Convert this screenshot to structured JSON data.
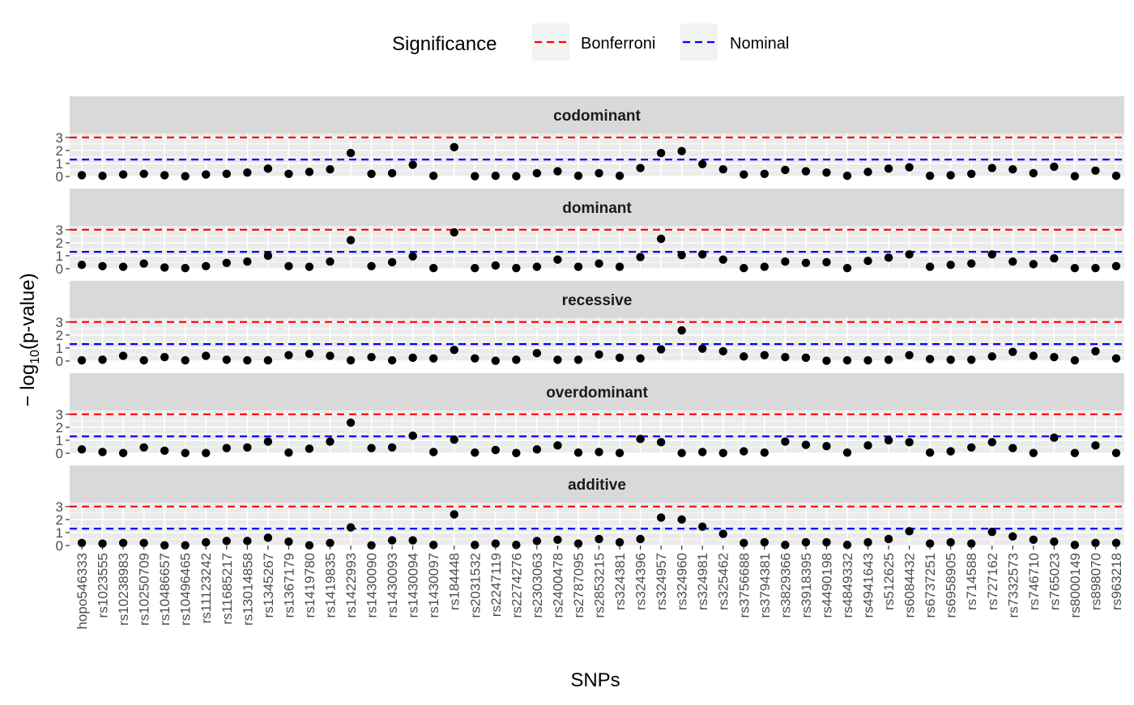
{
  "chart_data": {
    "type": "scatter",
    "xlabel": "SNPs",
    "ylabel": {
      "prefix": "− log",
      "subscript": "10",
      "suffix": "(p-value)"
    },
    "ylim": [
      0,
      3.3
    ],
    "yticks": [
      "0",
      "1",
      "2",
      "3"
    ],
    "grid": true,
    "legend": {
      "title": "Significance",
      "position": "top",
      "entries": [
        {
          "label": "Bonferroni",
          "color": "#ff0000",
          "linetype": "dashed"
        },
        {
          "label": "Nominal",
          "color": "#0000ff",
          "linetype": "dashed"
        }
      ]
    },
    "thresholds": {
      "Bonferroni": 3.0,
      "Nominal": 1.3
    },
    "colors": {
      "panel": "#ebebeb",
      "strip": "#d9d9d9",
      "grid": "#ffffff",
      "point": "#000000"
    },
    "categories": [
      "hopo546333",
      "rs1023555",
      "rs10238983",
      "rs10250709",
      "rs10486657",
      "rs10496465",
      "rs11123242",
      "rs11685217",
      "rs13014858",
      "rs1345267",
      "rs1367179",
      "rs1419780",
      "rs1419835",
      "rs1422993",
      "rs1430090",
      "rs1430093",
      "rs1430094",
      "rs1430097",
      "rs184448",
      "rs2031532",
      "rs2247119",
      "rs2274276",
      "rs2303063",
      "rs2400478",
      "rs2787095",
      "rs2853215",
      "rs324381",
      "rs324396",
      "rs324957",
      "rs324960",
      "rs324981",
      "rs325462",
      "rs3756688",
      "rs3794381",
      "rs3829366",
      "rs3918395",
      "rs4490198",
      "rs4849332",
      "rs4941643",
      "rs512625",
      "rs6084432",
      "rs6737251",
      "rs6958905",
      "rs714588",
      "rs727162",
      "rs7332573",
      "rs746710",
      "rs765023",
      "rs8000149",
      "rs898070",
      "rs963218"
    ],
    "facets": [
      {
        "name": "codominant",
        "values": [
          0.1,
          0.05,
          0.15,
          0.2,
          0.1,
          0.02,
          0.15,
          0.2,
          0.3,
          0.6,
          0.2,
          0.35,
          0.55,
          1.8,
          0.2,
          0.25,
          0.9,
          0.05,
          2.25,
          0.02,
          0.05,
          0.02,
          0.25,
          0.4,
          0.05,
          0.25,
          0.05,
          0.65,
          1.8,
          1.95,
          0.95,
          0.55,
          0.15,
          0.2,
          0.5,
          0.4,
          0.3,
          0.05,
          0.35,
          0.6,
          0.7,
          0.05,
          0.1,
          0.2,
          0.65,
          0.55,
          0.25,
          0.75,
          0.02,
          0.45,
          0.05
        ]
      },
      {
        "name": "dominant",
        "values": [
          0.3,
          0.2,
          0.15,
          0.4,
          0.1,
          0.05,
          0.2,
          0.45,
          0.55,
          1.0,
          0.2,
          0.15,
          0.55,
          2.2,
          0.2,
          0.5,
          0.95,
          0.05,
          2.8,
          0.05,
          0.25,
          0.05,
          0.15,
          0.7,
          0.15,
          0.4,
          0.15,
          0.9,
          2.3,
          1.05,
          1.1,
          0.7,
          0.05,
          0.15,
          0.55,
          0.45,
          0.5,
          0.05,
          0.6,
          0.85,
          1.1,
          0.15,
          0.3,
          0.4,
          1.1,
          0.55,
          0.35,
          0.8,
          0.05,
          0.05,
          0.2
        ]
      },
      {
        "name": "recessive",
        "values": [
          0.05,
          0.1,
          0.4,
          0.05,
          0.3,
          0.05,
          0.4,
          0.1,
          0.05,
          0.05,
          0.45,
          0.55,
          0.4,
          0.05,
          0.3,
          0.05,
          0.25,
          0.2,
          0.85,
          0.2,
          0.02,
          0.1,
          0.6,
          0.1,
          0.1,
          0.5,
          0.25,
          0.2,
          0.9,
          2.35,
          0.95,
          0.75,
          0.35,
          0.45,
          0.3,
          0.25,
          0.02,
          0.05,
          0.05,
          0.1,
          0.45,
          0.15,
          0.1,
          0.1,
          0.35,
          0.7,
          0.4,
          0.3,
          0.05,
          0.75,
          0.2
        ]
      },
      {
        "name": "overdominant",
        "values": [
          0.3,
          0.1,
          0.02,
          0.45,
          0.2,
          0.02,
          0.02,
          0.4,
          0.45,
          0.9,
          0.05,
          0.35,
          0.9,
          2.35,
          0.4,
          0.45,
          1.35,
          0.1,
          1.05,
          0.05,
          0.25,
          0.02,
          0.3,
          0.6,
          0.05,
          0.1,
          0.02,
          1.1,
          0.85,
          0.02,
          0.1,
          0.02,
          0.15,
          0.05,
          0.9,
          0.65,
          0.55,
          0.05,
          0.6,
          1.0,
          0.85,
          0.05,
          0.15,
          0.45,
          0.85,
          0.4,
          0.02,
          1.2,
          0.02,
          0.6,
          0.02
        ]
      },
      {
        "name": "additive",
        "values": [
          0.2,
          0.15,
          0.2,
          0.2,
          0.02,
          0.02,
          0.25,
          0.35,
          0.35,
          0.6,
          0.3,
          0.02,
          0.2,
          1.4,
          0.02,
          0.4,
          0.4,
          0.05,
          2.4,
          0.05,
          0.15,
          0.05,
          0.35,
          0.45,
          0.15,
          0.5,
          0.25,
          0.5,
          2.15,
          2.0,
          1.45,
          0.9,
          0.2,
          0.25,
          0.05,
          0.25,
          0.25,
          0.05,
          0.25,
          0.5,
          1.1,
          0.15,
          0.25,
          0.15,
          1.05,
          0.7,
          0.45,
          0.3,
          0.05,
          0.2,
          0.2
        ]
      }
    ]
  }
}
